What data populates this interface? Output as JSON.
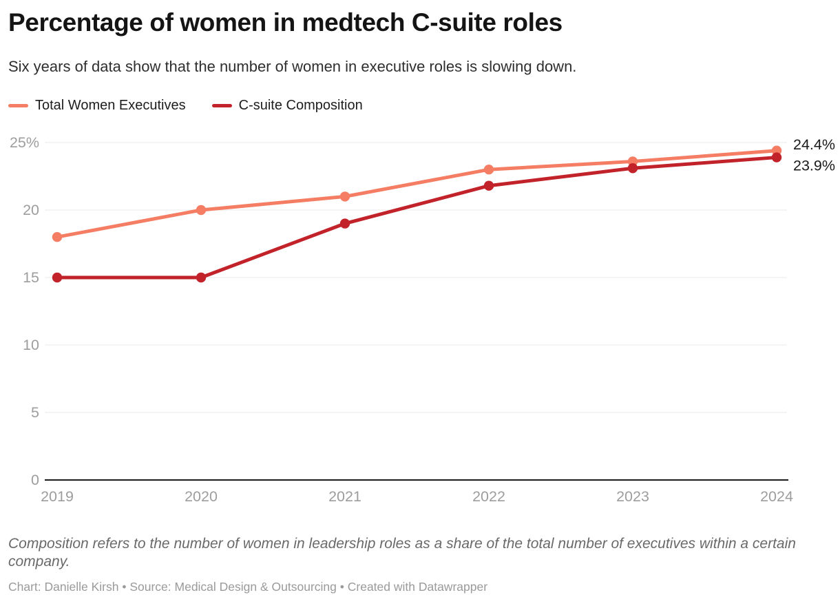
{
  "header": {
    "title": "Percentage of women in medtech C-suite roles",
    "subtitle": "Six years of data show that the number of women in executive roles is slowing down."
  },
  "legend": {
    "items": [
      {
        "label": "Total Women Executives",
        "color": "#F47D64"
      },
      {
        "label": "C-suite Composition",
        "color": "#C2232A"
      }
    ]
  },
  "chart_data": {
    "type": "line",
    "title": "Percentage of women in medtech C-suite roles",
    "x": [
      "2019",
      "2020",
      "2021",
      "2022",
      "2023",
      "2024"
    ],
    "series": [
      {
        "name": "Total Women Executives",
        "color": "#F47D64",
        "values": [
          18,
          20,
          21,
          23,
          23.6,
          24.4
        ],
        "end_label": "24.4%"
      },
      {
        "name": "C-suite Composition",
        "color": "#C2232A",
        "values": [
          15,
          15,
          19,
          21.8,
          23.1,
          23.9
        ],
        "end_label": "23.9%"
      }
    ],
    "ylim": [
      0,
      25
    ],
    "yticks": [
      0,
      5,
      10,
      15,
      20,
      25
    ],
    "ytick_labels": [
      "0",
      "5",
      "10",
      "15",
      "20",
      "25%"
    ],
    "grid": true,
    "legend_position": "top-left",
    "colors": {
      "gridline": "#e8e8e8",
      "baseline": "#1a1a1a",
      "tick_label": "#9d9d9d",
      "end_label": "#1a1a1a"
    }
  },
  "footer": {
    "note": "Composition refers to the number of women in leadership roles as a share of the total number of executives within a certain company.",
    "credit": "Chart: Danielle Kirsh • Source: Medical Design & Outsourcing • Created with Datawrapper"
  }
}
